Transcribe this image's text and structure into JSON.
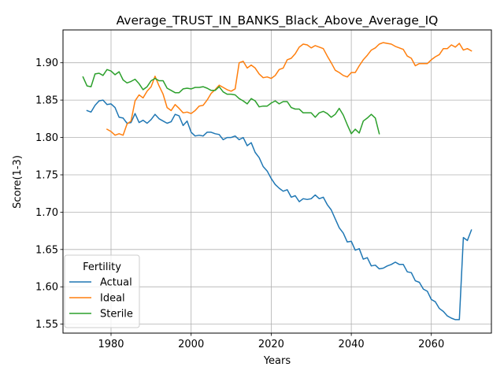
{
  "chart_data": {
    "type": "line",
    "title": "Average_TRUST_IN_BANKS_Black_Above_Average_IQ",
    "xlabel": "Years",
    "ylabel": "Score(1-3)",
    "xlim": [
      1968,
      2075
    ],
    "ylim": [
      1.538,
      1.944
    ],
    "xticks": [
      1980,
      2000,
      2020,
      2040,
      2060
    ],
    "yticks": [
      1.55,
      1.6,
      1.65,
      1.7,
      1.75,
      1.8,
      1.85,
      1.9
    ],
    "grid": true,
    "legend": {
      "title": "Fertility",
      "placement": "lower-left"
    },
    "series": [
      {
        "name": "Actual",
        "color": "#1f77b4",
        "x": [
          1974,
          1975,
          1976,
          1977,
          1978,
          1979,
          1980,
          1981,
          1982,
          1983,
          1984,
          1985,
          1986,
          1987,
          1988,
          1989,
          1990,
          1991,
          1992,
          1993,
          1994,
          1995,
          1996,
          1997,
          1998,
          1999,
          2000,
          2001,
          2002,
          2003,
          2004,
          2005,
          2006,
          2007,
          2008,
          2009,
          2010,
          2011,
          2012,
          2013,
          2014,
          2015,
          2016,
          2017,
          2018,
          2019,
          2020,
          2021,
          2022,
          2023,
          2024,
          2025,
          2026,
          2027,
          2028,
          2029,
          2030,
          2031,
          2032,
          2033,
          2034,
          2035,
          2036,
          2037,
          2038,
          2039,
          2040,
          2041,
          2042,
          2043,
          2044,
          2045,
          2046,
          2047,
          2048,
          2049,
          2050,
          2051,
          2052,
          2053,
          2054,
          2055,
          2056,
          2057,
          2058,
          2059,
          2060,
          2061,
          2062,
          2063,
          2064,
          2065,
          2066,
          2067,
          2068,
          2069,
          2070
        ],
        "y": [
          1.836,
          1.834,
          1.843,
          1.849,
          1.85,
          1.844,
          1.845,
          1.84,
          1.827,
          1.826,
          1.819,
          1.82,
          1.832,
          1.82,
          1.823,
          1.819,
          1.824,
          1.831,
          1.825,
          1.822,
          1.819,
          1.821,
          1.831,
          1.829,
          1.816,
          1.822,
          1.807,
          1.802,
          1.803,
          1.802,
          1.807,
          1.807,
          1.805,
          1.804,
          1.797,
          1.8,
          1.8,
          1.802,
          1.797,
          1.8,
          1.789,
          1.793,
          1.78,
          1.773,
          1.761,
          1.755,
          1.745,
          1.737,
          1.732,
          1.728,
          1.73,
          1.72,
          1.722,
          1.714,
          1.718,
          1.717,
          1.718,
          1.723,
          1.718,
          1.72,
          1.71,
          1.703,
          1.691,
          1.679,
          1.672,
          1.66,
          1.661,
          1.649,
          1.651,
          1.637,
          1.639,
          1.628,
          1.629,
          1.624,
          1.625,
          1.628,
          1.63,
          1.633,
          1.63,
          1.63,
          1.62,
          1.619,
          1.608,
          1.606,
          1.597,
          1.594,
          1.583,
          1.58,
          1.571,
          1.567,
          1.561,
          1.558,
          1.556,
          1.556,
          1.666,
          1.662,
          1.676
        ]
      },
      {
        "name": "Ideal",
        "color": "#ff7f0e",
        "x": [
          1979,
          1980,
          1981,
          1982,
          1983,
          1984,
          1985,
          1986,
          1987,
          1988,
          1989,
          1990,
          1991,
          1992,
          1993,
          1994,
          1995,
          1996,
          1997,
          1998,
          1999,
          2000,
          2001,
          2002,
          2003,
          2004,
          2005,
          2006,
          2007,
          2008,
          2009,
          2010,
          2011,
          2012,
          2013,
          2014,
          2015,
          2016,
          2017,
          2018,
          2019,
          2020,
          2021,
          2022,
          2023,
          2024,
          2025,
          2026,
          2027,
          2028,
          2029,
          2030,
          2031,
          2032,
          2033,
          2034,
          2035,
          2036,
          2037,
          2038,
          2039,
          2040,
          2041,
          2042,
          2043,
          2044,
          2045,
          2046,
          2047,
          2048,
          2049,
          2050,
          2051,
          2052,
          2053,
          2054,
          2055,
          2056,
          2057,
          2058,
          2059,
          2060,
          2061,
          2062,
          2063,
          2064,
          2065,
          2066,
          2067,
          2068,
          2069,
          2070
        ],
        "y": [
          1.811,
          1.808,
          1.803,
          1.805,
          1.803,
          1.818,
          1.822,
          1.849,
          1.857,
          1.853,
          1.862,
          1.868,
          1.882,
          1.869,
          1.858,
          1.84,
          1.836,
          1.844,
          1.839,
          1.833,
          1.834,
          1.832,
          1.836,
          1.842,
          1.843,
          1.85,
          1.859,
          1.864,
          1.87,
          1.867,
          1.864,
          1.862,
          1.865,
          1.9,
          1.902,
          1.893,
          1.897,
          1.893,
          1.885,
          1.88,
          1.881,
          1.879,
          1.883,
          1.891,
          1.893,
          1.904,
          1.906,
          1.912,
          1.921,
          1.925,
          1.924,
          1.92,
          1.923,
          1.921,
          1.919,
          1.909,
          1.9,
          1.89,
          1.887,
          1.883,
          1.881,
          1.887,
          1.887,
          1.896,
          1.904,
          1.91,
          1.917,
          1.92,
          1.925,
          1.927,
          1.926,
          1.925,
          1.922,
          1.92,
          1.918,
          1.909,
          1.906,
          1.896,
          1.899,
          1.899,
          1.899,
          1.904,
          1.908,
          1.911,
          1.919,
          1.919,
          1.924,
          1.921,
          1.926,
          1.917,
          1.919,
          1.916
        ]
      },
      {
        "name": "Sterile",
        "color": "#2ca02c",
        "x": [
          1973,
          1974,
          1975,
          1976,
          1977,
          1978,
          1979,
          1980,
          1981,
          1982,
          1983,
          1984,
          1985,
          1986,
          1987,
          1988,
          1989,
          1990,
          1991,
          1992,
          1993,
          1994,
          1995,
          1996,
          1997,
          1998,
          1999,
          2000,
          2001,
          2002,
          2003,
          2004,
          2005,
          2006,
          2007,
          2008,
          2009,
          2010,
          2011,
          2012,
          2013,
          2014,
          2015,
          2016,
          2017,
          2018,
          2019,
          2020,
          2021,
          2022,
          2023,
          2024,
          2025,
          2026,
          2027,
          2028,
          2029,
          2030,
          2031,
          2032,
          2033,
          2034,
          2035,
          2036,
          2037,
          2038,
          2039,
          2040,
          2041,
          2042,
          2043,
          2044,
          2045,
          2046,
          2047
        ],
        "y": [
          1.881,
          1.869,
          1.868,
          1.885,
          1.886,
          1.883,
          1.891,
          1.889,
          1.884,
          1.888,
          1.877,
          1.873,
          1.875,
          1.878,
          1.872,
          1.864,
          1.868,
          1.876,
          1.879,
          1.876,
          1.876,
          1.866,
          1.863,
          1.86,
          1.86,
          1.865,
          1.866,
          1.865,
          1.867,
          1.867,
          1.868,
          1.866,
          1.863,
          1.863,
          1.868,
          1.861,
          1.858,
          1.858,
          1.857,
          1.852,
          1.849,
          1.845,
          1.852,
          1.849,
          1.841,
          1.842,
          1.842,
          1.846,
          1.849,
          1.845,
          1.848,
          1.848,
          1.84,
          1.838,
          1.838,
          1.833,
          1.833,
          1.833,
          1.827,
          1.833,
          1.835,
          1.832,
          1.827,
          1.831,
          1.839,
          1.83,
          1.817,
          1.805,
          1.811,
          1.806,
          1.822,
          1.826,
          1.831,
          1.826,
          1.805
        ]
      }
    ]
  }
}
